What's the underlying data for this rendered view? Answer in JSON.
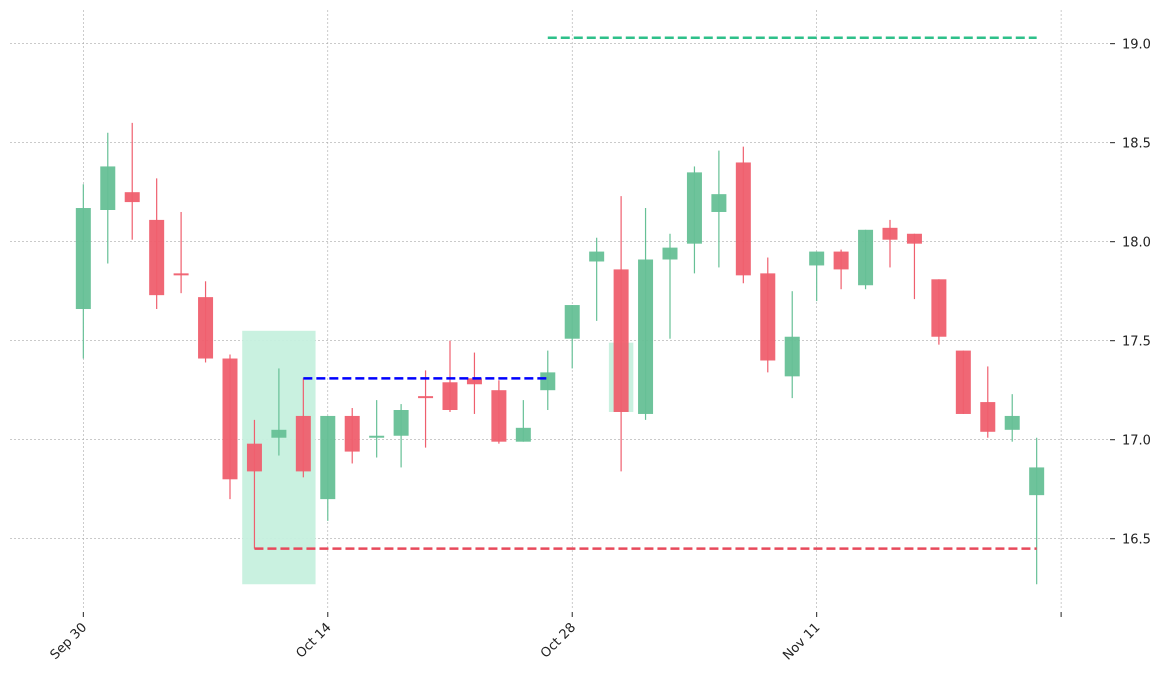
{
  "chart_data": {
    "type": "candlestick",
    "categories": [
      "Sep 30",
      null,
      null,
      null,
      null,
      null,
      null,
      null,
      null,
      null,
      "Oct 14",
      null,
      null,
      null,
      null,
      null,
      null,
      null,
      null,
      null,
      "Oct 28",
      null,
      null,
      null,
      null,
      null,
      null,
      null,
      null,
      null,
      "Nov 11",
      null,
      null,
      null,
      null,
      null,
      null,
      null,
      null,
      null
    ],
    "open": [
      17.66,
      18.16,
      18.25,
      18.11,
      17.84,
      17.72,
      17.41,
      16.98,
      17.01,
      17.12,
      16.7,
      17.12,
      17.01,
      17.02,
      17.22,
      17.29,
      17.31,
      17.25,
      16.99,
      17.25,
      17.51,
      17.9,
      17.86,
      17.13,
      17.91,
      17.99,
      18.15,
      18.4,
      17.84,
      17.32,
      17.88,
      17.95,
      17.78,
      18.07,
      18.04,
      17.81,
      17.45,
      17.19,
      17.05,
      16.72
    ],
    "high": [
      18.29,
      18.55,
      18.6,
      18.32,
      18.15,
      17.8,
      17.43,
      17.1,
      17.36,
      17.31,
      17.12,
      17.16,
      17.2,
      17.18,
      17.35,
      17.5,
      17.44,
      17.3,
      17.2,
      17.45,
      17.68,
      18.02,
      18.23,
      18.17,
      18.04,
      18.38,
      18.46,
      18.48,
      17.92,
      17.75,
      17.95,
      17.96,
      18.06,
      18.11,
      18.04,
      17.81,
      17.45,
      17.37,
      17.23,
      17.01
    ],
    "low": [
      17.41,
      17.89,
      18.01,
      17.66,
      17.74,
      17.39,
      16.7,
      16.45,
      16.92,
      16.81,
      16.59,
      16.88,
      16.91,
      16.86,
      16.96,
      17.14,
      17.13,
      16.98,
      16.99,
      17.15,
      17.36,
      17.6,
      16.84,
      17.1,
      17.51,
      17.84,
      17.87,
      17.79,
      17.34,
      17.21,
      17.7,
      17.76,
      17.76,
      17.87,
      17.71,
      17.48,
      17.13,
      17.01,
      16.99,
      16.27
    ],
    "close": [
      18.17,
      18.38,
      18.2,
      17.73,
      17.83,
      17.41,
      16.8,
      16.84,
      17.05,
      16.84,
      17.12,
      16.94,
      17.02,
      17.15,
      17.21,
      17.15,
      17.28,
      16.99,
      17.06,
      17.34,
      17.68,
      17.95,
      17.14,
      17.91,
      17.97,
      18.35,
      18.24,
      17.83,
      17.4,
      17.52,
      17.95,
      17.86,
      18.06,
      18.01,
      17.99,
      17.52,
      17.13,
      17.04,
      17.12,
      16.86
    ],
    "up_color": "#66c096",
    "down_color": "#ef5f6e",
    "zones": [
      {
        "x": [
          6.5,
          9.5
        ],
        "y": [
          16.27,
          17.55
        ],
        "color": "#c6f0de"
      },
      {
        "x": [
          21.5,
          22.5
        ],
        "y": [
          17.14,
          17.49
        ],
        "color": "#c6f0de"
      }
    ],
    "levels": [
      {
        "value": 19.03,
        "x": [
          19,
          39
        ],
        "color": "#2ec08a"
      },
      {
        "value": 17.31,
        "x": [
          9,
          19
        ],
        "color": "#0000ff"
      },
      {
        "value": 16.45,
        "x": [
          7,
          39
        ],
        "color": "#e8495b"
      }
    ],
    "xlim": [
      -3,
      42
    ],
    "xticks": [
      0,
      10,
      20,
      30,
      40
    ],
    "ylim": [
      16.14,
      19.17
    ],
    "yticks": [
      16.5,
      17.0,
      17.5,
      18.0,
      18.5,
      19.0
    ],
    "grid": true
  }
}
